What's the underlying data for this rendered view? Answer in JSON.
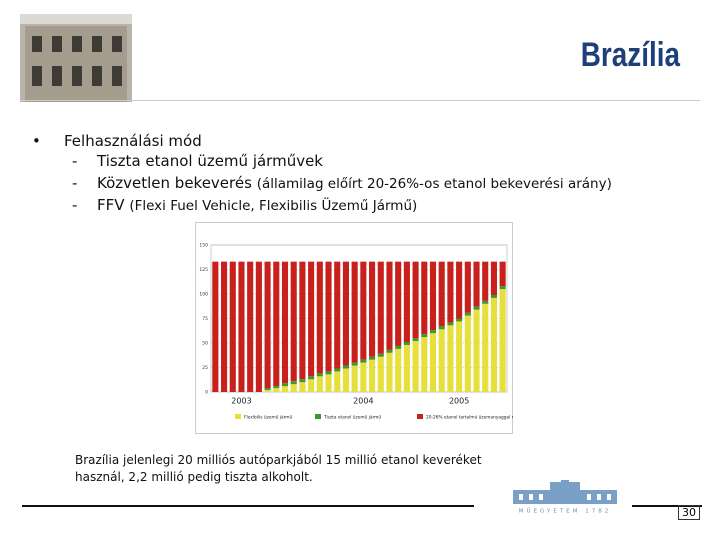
{
  "header": {
    "title": "Brazília"
  },
  "bullets": [
    {
      "text": "Felhasználási mód",
      "sub": [
        {
          "text": "Tiszta etanol üzemű járművek"
        },
        {
          "text": "Közvetlen bekeverés",
          "note": "(államilag előírt 20-26%-os etanol bekeverési arány)"
        },
        {
          "text": "FFV",
          "note": "(Flexi Fuel Vehicle, Flexibilis Üzemű Jármű)"
        }
      ]
    }
  ],
  "chart_data": {
    "type": "stacked-bar",
    "categories": [
      null,
      null,
      null,
      "2003",
      null,
      null,
      null,
      null,
      null,
      null,
      null,
      null,
      null,
      null,
      null,
      null,
      null,
      "2004",
      null,
      null,
      null,
      null,
      null,
      null,
      null,
      null,
      null,
      null,
      "2005",
      null,
      null,
      null,
      null,
      null
    ],
    "series": [
      {
        "name": "Flexibilis üzemű jármű",
        "color": "#e6df3c",
        "values": [
          0,
          0,
          0,
          0,
          0,
          0,
          2,
          4,
          6,
          8,
          10,
          13,
          16,
          18,
          21,
          24,
          27,
          30,
          33,
          36,
          40,
          44,
          48,
          52,
          56,
          60,
          64,
          68,
          72,
          78,
          84,
          90,
          96,
          105
        ]
      },
      {
        "name": "Tiszta etanol üzemű jármű",
        "color": "#3a9a30",
        "values": [
          0,
          0,
          0,
          0,
          0,
          0,
          2,
          2,
          3,
          3,
          3,
          3,
          3,
          3,
          3,
          3,
          3,
          3,
          3,
          3,
          3,
          3,
          3,
          3,
          3,
          3,
          3,
          3,
          3,
          3,
          3,
          3,
          3,
          3
        ]
      },
      {
        "name": "20-26% etanol tartalmú üzemanyaggal működő járművek",
        "color": "#c8201c",
        "values": [
          133,
          133,
          133,
          133,
          133,
          133,
          129,
          127,
          124,
          122,
          120,
          117,
          114,
          112,
          109,
          106,
          103,
          100,
          97,
          94,
          90,
          86,
          82,
          78,
          74,
          70,
          66,
          62,
          58,
          52,
          46,
          40,
          34,
          25
        ]
      }
    ],
    "ylim": [
      0,
      150
    ],
    "yticks": [
      0,
      25,
      50,
      75,
      100,
      125,
      150
    ],
    "grid": true
  },
  "caption": "Brazília jelenlegi 20 milliós autóparkjából 15 millió etanol keveréket használ, 2,2 millió pedig tiszta alkoholt.",
  "logo_text": "MŰEGYETEM 1782",
  "page_number": "30"
}
